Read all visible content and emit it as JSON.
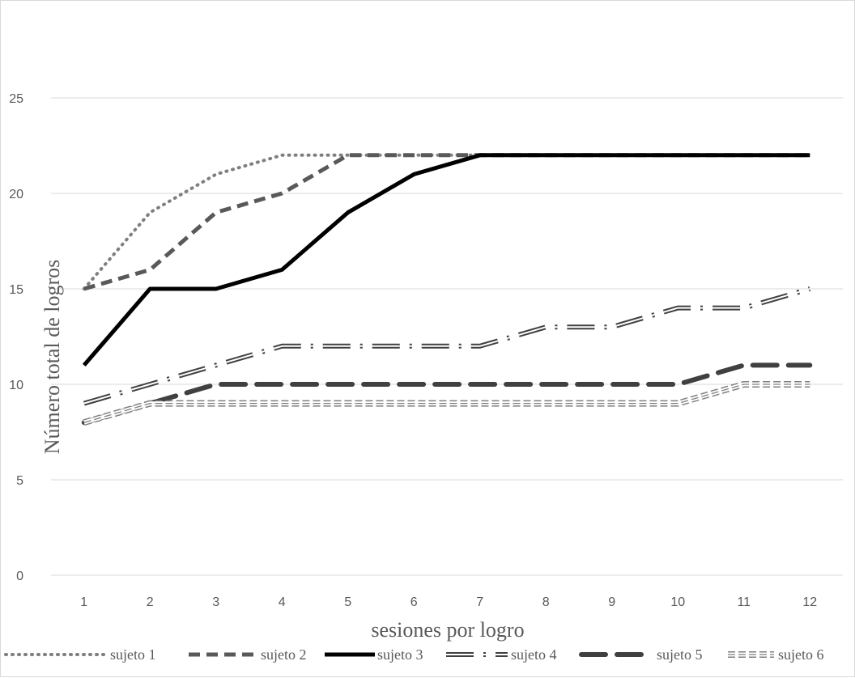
{
  "chart_data": {
    "type": "line",
    "title": "",
    "xlabel": "sesiones por logro",
    "ylabel": "Número total de logros",
    "categories": [
      "1",
      "2",
      "3",
      "4",
      "5",
      "6",
      "7",
      "8",
      "9",
      "10",
      "11",
      "12"
    ],
    "ylim": [
      0,
      25
    ],
    "yticks": [
      0,
      5,
      10,
      15,
      20,
      25
    ],
    "grid": true,
    "legend_position": "bottom",
    "series": [
      {
        "name": "sujeto 1",
        "style": "dotted",
        "color": "#7f7f7f",
        "values": [
          15,
          19,
          21,
          22,
          22,
          22,
          22,
          22,
          22,
          22,
          22,
          22
        ]
      },
      {
        "name": "sujeto 2",
        "style": "dashed",
        "color": "#595959",
        "values": [
          15,
          16,
          19,
          20,
          22,
          22,
          22,
          22,
          22,
          22,
          22,
          22
        ]
      },
      {
        "name": "sujeto 3",
        "style": "solid",
        "color": "#000000",
        "values": [
          11,
          15,
          15,
          16,
          19,
          21,
          22,
          22,
          22,
          22,
          22,
          22
        ]
      },
      {
        "name": "sujeto 4",
        "style": "double-dash-dot",
        "color": "#404040",
        "values": [
          9,
          10,
          11,
          12,
          12,
          12,
          12,
          13,
          13,
          14,
          14,
          15
        ]
      },
      {
        "name": "sujeto 5",
        "style": "long-dash",
        "color": "#404040",
        "values": [
          8,
          9,
          10,
          10,
          10,
          10,
          10,
          10,
          10,
          10,
          11,
          11
        ]
      },
      {
        "name": "sujeto 6",
        "style": "triple-line",
        "color": "#7f7f7f",
        "values": [
          8,
          9,
          9,
          9,
          9,
          9,
          9,
          9,
          9,
          9,
          10,
          10
        ]
      }
    ]
  }
}
